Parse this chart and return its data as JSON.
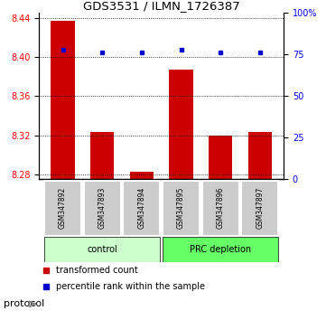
{
  "title": "GDS3531 / ILMN_1726387",
  "samples": [
    "GSM347892",
    "GSM347893",
    "GSM347894",
    "GSM347895",
    "GSM347896",
    "GSM347897"
  ],
  "transformed_counts": [
    8.437,
    8.323,
    8.283,
    8.387,
    8.32,
    8.323
  ],
  "percentile_ranks": [
    78,
    76,
    76,
    78,
    76,
    76
  ],
  "ylim_left": [
    8.275,
    8.445
  ],
  "ylim_right": [
    0,
    100
  ],
  "yticks_left": [
    8.28,
    8.32,
    8.36,
    8.4,
    8.44
  ],
  "yticks_right": [
    0,
    25,
    50,
    75,
    100
  ],
  "groups": [
    {
      "label": "control",
      "samples": [
        0,
        1,
        2
      ],
      "color": "#ccffcc"
    },
    {
      "label": "PRC depletion",
      "samples": [
        3,
        4,
        5
      ],
      "color": "#66ff66"
    }
  ],
  "bar_color": "#cc0000",
  "dot_color": "#0000cc",
  "bar_bottom": 8.275,
  "bar_width": 0.6,
  "background_color": "#ffffff",
  "plot_bg_color": "#ffffff",
  "grid_color": "#000000",
  "protocol_label": "protocol",
  "legend_items": [
    {
      "color": "#cc0000",
      "label": "transformed count"
    },
    {
      "color": "#0000cc",
      "label": "percentile rank within the sample"
    }
  ]
}
